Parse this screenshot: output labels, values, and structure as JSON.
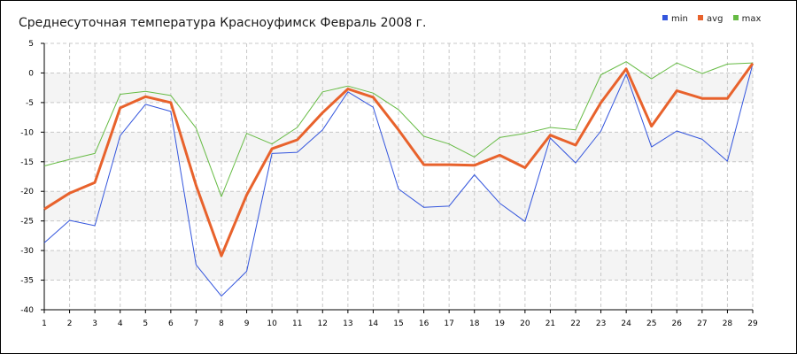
{
  "chart_data": {
    "type": "line",
    "title": "Среднесуточная температура Красноуфимск  Февраль 2008 г.",
    "xlabel": "",
    "ylabel": "",
    "x": [
      1,
      2,
      3,
      4,
      5,
      6,
      7,
      8,
      9,
      10,
      11,
      12,
      13,
      14,
      15,
      16,
      17,
      18,
      19,
      20,
      21,
      22,
      23,
      24,
      25,
      26,
      27,
      28,
      29
    ],
    "ylim": [
      -40,
      5
    ],
    "yticks": [
      5,
      0,
      -5,
      -10,
      -15,
      -20,
      -25,
      -30,
      -35,
      -40
    ],
    "grid": true,
    "legend_position": "top-right",
    "series": [
      {
        "name": "min",
        "color": "#3355dd",
        "values": [
          -28.7,
          -24.9,
          -25.8,
          -10.6,
          -5.3,
          -6.5,
          -32.4,
          -37.7,
          -33.5,
          -13.6,
          -13.4,
          -9.6,
          -3.2,
          -5.8,
          -19.6,
          -22.7,
          -22.5,
          -17.2,
          -22.0,
          -25.1,
          -11.0,
          -15.2,
          -9.8,
          -0.2,
          -12.5,
          -9.8,
          -11.2,
          -14.9,
          1.5
        ]
      },
      {
        "name": "avg",
        "color": "#e8622c",
        "values": [
          -23.0,
          -20.3,
          -18.5,
          -5.9,
          -4.0,
          -5.0,
          -19.0,
          -30.9,
          -20.6,
          -12.8,
          -11.3,
          -6.7,
          -2.7,
          -4.1,
          -9.6,
          -15.5,
          -15.5,
          -15.6,
          -13.9,
          -16.0,
          -10.5,
          -12.2,
          -5.0,
          0.7,
          -9.0,
          -3.0,
          -4.3,
          -4.3,
          1.6
        ]
      },
      {
        "name": "max",
        "color": "#66bb44",
        "values": [
          -15.7,
          -14.6,
          -13.6,
          -3.6,
          -3.1,
          -3.8,
          -9.3,
          -20.9,
          -10.2,
          -12.0,
          -9.2,
          -3.2,
          -2.2,
          -3.4,
          -6.2,
          -10.7,
          -12.0,
          -14.2,
          -10.9,
          -10.2,
          -9.2,
          -9.6,
          -0.3,
          1.9,
          -1.0,
          1.7,
          -0.1,
          1.5,
          1.7
        ]
      }
    ]
  }
}
